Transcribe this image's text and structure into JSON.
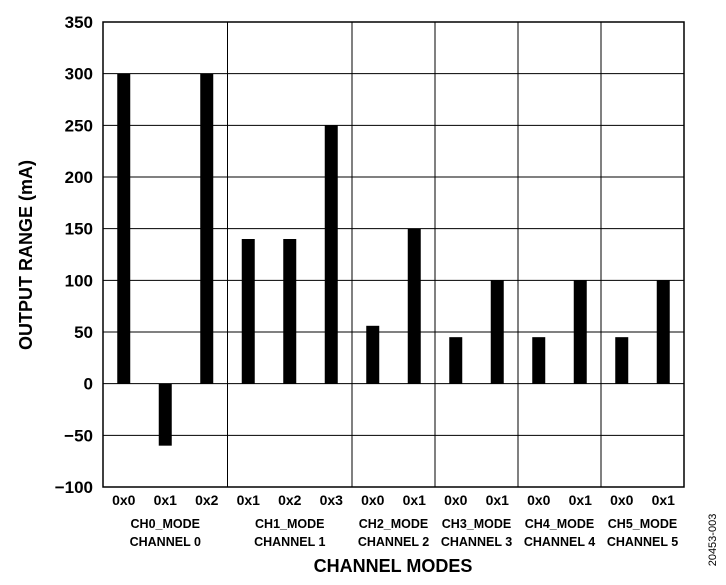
{
  "chart_data": {
    "type": "bar",
    "title": "",
    "xlabel": "CHANNEL MODES",
    "ylabel": "OUTPUT RANGE (mA)",
    "ylim": [
      -100,
      350
    ],
    "yticks": [
      "350",
      "300",
      "250",
      "200",
      "150",
      "100",
      "50",
      "0",
      "−50",
      "−100"
    ],
    "ytick_values": [
      350,
      300,
      250,
      200,
      150,
      100,
      50,
      0,
      -50,
      -100
    ],
    "grid": "horizontal lines at every tick; vertical separators between channel groups",
    "figure_id": "20453-003",
    "groups": [
      {
        "line1": "CH0_MODE",
        "line2": "CHANNEL 0",
        "bars": [
          {
            "label": "0x0",
            "value": 300
          },
          {
            "label": "0x1",
            "value": -60
          },
          {
            "label": "0x2",
            "value": 300
          }
        ]
      },
      {
        "line1": "CH1_MODE",
        "line2": "CHANNEL 1",
        "bars": [
          {
            "label": "0x1",
            "value": 140
          },
          {
            "label": "0x2",
            "value": 140
          },
          {
            "label": "0x3",
            "value": 250
          }
        ]
      },
      {
        "line1": "CH2_MODE",
        "line2": "CHANNEL 2",
        "bars": [
          {
            "label": "0x0",
            "value": 56
          },
          {
            "label": "0x1",
            "value": 150
          }
        ]
      },
      {
        "line1": "CH3_MODE",
        "line2": "CHANNEL 3",
        "bars": [
          {
            "label": "0x0",
            "value": 45
          },
          {
            "label": "0x1",
            "value": 100
          }
        ]
      },
      {
        "line1": "CH4_MODE",
        "line2": "CHANNEL 4",
        "bars": [
          {
            "label": "0x0",
            "value": 45
          },
          {
            "label": "0x1",
            "value": 100
          }
        ]
      },
      {
        "line1": "CH5_MODE",
        "line2": "CHANNEL 5",
        "bars": [
          {
            "label": "0x0",
            "value": 45
          },
          {
            "label": "0x1",
            "value": 100
          }
        ]
      }
    ],
    "colors": {
      "bar": "#000000",
      "grid": "#000000",
      "background": "#ffffff"
    }
  }
}
